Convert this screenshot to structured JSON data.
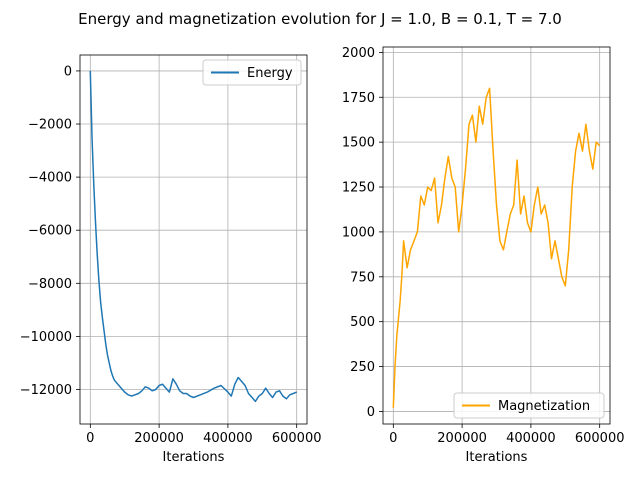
{
  "figure": {
    "title": "Energy and magnetization evolution for J = 1.0, B = 0.1, T = 7.0"
  },
  "chart_data": [
    {
      "type": "line",
      "title": "",
      "xlabel": "Iterations",
      "ylabel": "",
      "xlim": [
        -30000,
        630000
      ],
      "ylim": [
        -13300,
        600
      ],
      "grid": true,
      "legend": "top-right",
      "x_ticks": [
        0,
        200000,
        400000,
        600000
      ],
      "x_tick_labels": [
        "0",
        "200000",
        "400000",
        "600000"
      ],
      "y_ticks": [
        0,
        -2000,
        -4000,
        -6000,
        -8000,
        -10000,
        -12000
      ],
      "y_tick_labels": [
        "0",
        "−2000",
        "−4000",
        "−6000",
        "−8000",
        "−10000",
        "−12000"
      ],
      "series": [
        {
          "name": "Energy",
          "color": "#1f77b4",
          "x": [
            0,
            5000,
            10000,
            15000,
            20000,
            25000,
            30000,
            35000,
            40000,
            45000,
            50000,
            55000,
            60000,
            65000,
            70000,
            80000,
            90000,
            100000,
            110000,
            120000,
            130000,
            140000,
            150000,
            160000,
            170000,
            180000,
            190000,
            200000,
            210000,
            220000,
            230000,
            240000,
            250000,
            260000,
            270000,
            280000,
            290000,
            300000,
            320000,
            340000,
            360000,
            380000,
            400000,
            410000,
            420000,
            430000,
            440000,
            450000,
            460000,
            470000,
            480000,
            490000,
            500000,
            510000,
            520000,
            530000,
            540000,
            550000,
            560000,
            570000,
            580000,
            590000,
            600000
          ],
          "values": [
            0,
            -2500,
            -4300,
            -5700,
            -6900,
            -7900,
            -8700,
            -9300,
            -9800,
            -10300,
            -10700,
            -11000,
            -11300,
            -11500,
            -11650,
            -11800,
            -11950,
            -12100,
            -12200,
            -12250,
            -12200,
            -12150,
            -12050,
            -11900,
            -11950,
            -12050,
            -12000,
            -11850,
            -11800,
            -11950,
            -12100,
            -11600,
            -11800,
            -12050,
            -12150,
            -12150,
            -12250,
            -12300,
            -12200,
            -12100,
            -11950,
            -11850,
            -12100,
            -12250,
            -11800,
            -11550,
            -11700,
            -11850,
            -12150,
            -12300,
            -12450,
            -12250,
            -12150,
            -11950,
            -12150,
            -12300,
            -12100,
            -12050,
            -12250,
            -12350,
            -12200,
            -12150,
            -12100
          ]
        }
      ]
    },
    {
      "type": "line",
      "title": "",
      "xlabel": "Iterations",
      "ylabel": "",
      "xlim": [
        -30000,
        630000
      ],
      "ylim": [
        -70,
        2030
      ],
      "grid": true,
      "legend": "bottom-right",
      "x_ticks": [
        0,
        200000,
        400000,
        600000
      ],
      "x_tick_labels": [
        "0",
        "200000",
        "400000",
        "600000"
      ],
      "y_ticks": [
        0,
        250,
        500,
        750,
        1000,
        1250,
        1500,
        1750,
        2000
      ],
      "y_tick_labels": [
        "0",
        "250",
        "500",
        "750",
        "1000",
        "1250",
        "1500",
        "1750",
        "2000"
      ],
      "series": [
        {
          "name": "Magnetization",
          "color": "#ffa500",
          "x": [
            0,
            5000,
            10000,
            15000,
            20000,
            25000,
            30000,
            40000,
            50000,
            60000,
            70000,
            80000,
            90000,
            100000,
            110000,
            120000,
            130000,
            140000,
            150000,
            160000,
            170000,
            180000,
            190000,
            200000,
            210000,
            220000,
            230000,
            240000,
            250000,
            260000,
            270000,
            280000,
            290000,
            300000,
            310000,
            320000,
            330000,
            340000,
            350000,
            360000,
            370000,
            380000,
            390000,
            400000,
            410000,
            420000,
            430000,
            440000,
            450000,
            460000,
            470000,
            480000,
            490000,
            500000,
            510000,
            520000,
            530000,
            540000,
            550000,
            560000,
            570000,
            580000,
            590000,
            600000
          ],
          "values": [
            20,
            250,
            420,
            520,
            620,
            760,
            950,
            800,
            900,
            950,
            1000,
            1200,
            1150,
            1250,
            1230,
            1300,
            1050,
            1150,
            1300,
            1420,
            1300,
            1250,
            1000,
            1150,
            1350,
            1600,
            1650,
            1500,
            1700,
            1600,
            1750,
            1800,
            1450,
            1150,
            950,
            900,
            1000,
            1100,
            1150,
            1400,
            1100,
            1200,
            1050,
            1000,
            1150,
            1250,
            1100,
            1150,
            1050,
            850,
            950,
            850,
            750,
            700,
            900,
            1250,
            1450,
            1550,
            1450,
            1600,
            1450,
            1350,
            1500,
            1480
          ]
        }
      ]
    }
  ]
}
